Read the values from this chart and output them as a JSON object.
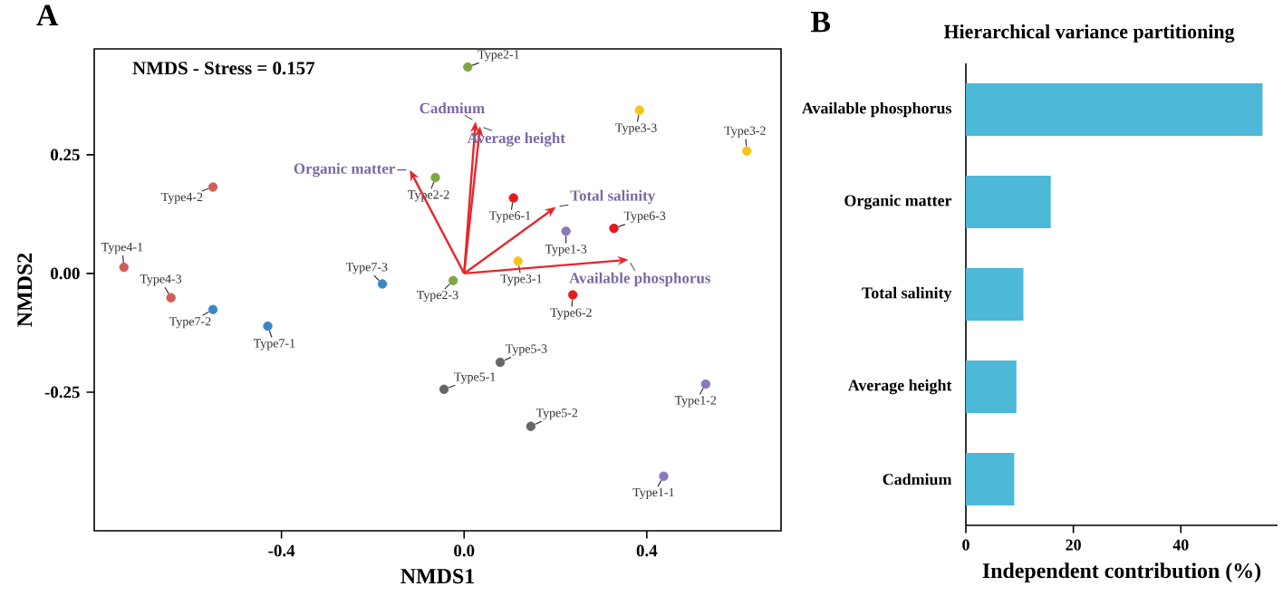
{
  "chart_data": [
    {
      "type": "scatter",
      "annotations": [
        "A",
        "NMDS - Stress = 0.157",
        "Cadmium",
        "Average height",
        "Organic matter",
        "Total salinity",
        "Available phosphorus"
      ],
      "xlabel": "NMDS1",
      "ylabel": "NMDS2",
      "xlim": [
        -0.81,
        0.694
      ],
      "ylim": [
        -0.542,
        0.473
      ],
      "xticks": [
        -0.4,
        {
          "value": 0,
          "label": "0.0"
        },
        0.4
      ],
      "yticks": [
        -0.25,
        {
          "value": 0,
          "label": "0.00"
        },
        0.25
      ],
      "marker": "circle",
      "series": [
        {
          "name": "Type2-1",
          "color": "#7fa645",
          "x": [
            0.008
          ],
          "values": [
            0.435
          ]
        },
        {
          "name": "Type3-3",
          "color": "#f5c518",
          "x": [
            0.384
          ],
          "values": [
            0.344
          ]
        },
        {
          "name": "Type3-2",
          "color": "#f5c518",
          "x": [
            0.619
          ],
          "values": [
            0.258
          ]
        },
        {
          "name": "Type4-2",
          "color": "#cf5d5a",
          "x": [
            -0.55
          ],
          "values": [
            0.182
          ]
        },
        {
          "name": "Type2-2",
          "color": "#7fa645",
          "x": [
            -0.063
          ],
          "values": [
            0.202
          ]
        },
        {
          "name": "Type6-1",
          "color": "#e8191c",
          "x": [
            0.108
          ],
          "values": [
            0.159
          ]
        },
        {
          "name": "Type1-3",
          "color": "#8a78b8",
          "x": [
            0.223
          ],
          "values": [
            0.089
          ]
        },
        {
          "name": "Type6-3",
          "color": "#e8191c",
          "x": [
            0.328
          ],
          "values": [
            0.095
          ]
        },
        {
          "name": "Type4-1",
          "color": "#cf5d5a",
          "x": [
            -0.745
          ],
          "values": [
            0.013
          ]
        },
        {
          "name": "Type3-1",
          "color": "#f5c518",
          "x": [
            0.118
          ],
          "values": [
            0.026
          ]
        },
        {
          "name": "Type4-3",
          "color": "#cf5d5a",
          "x": [
            -0.642
          ],
          "values": [
            -0.051
          ]
        },
        {
          "name": "Type7-3",
          "color": "#3a87c8",
          "x": [
            -0.179
          ],
          "values": [
            -0.022
          ]
        },
        {
          "name": "Type2-3",
          "color": "#7fa645",
          "x": [
            -0.024
          ],
          "values": [
            -0.015
          ]
        },
        {
          "name": "Type6-2",
          "color": "#e8191c",
          "x": [
            0.238
          ],
          "values": [
            -0.045
          ]
        },
        {
          "name": "Type7-2",
          "color": "#3a87c8",
          "x": [
            -0.55
          ],
          "values": [
            -0.076
          ]
        },
        {
          "name": "Type7-1",
          "color": "#3a87c8",
          "x": [
            -0.43
          ],
          "values": [
            -0.111
          ]
        },
        {
          "name": "Type5-3",
          "color": "#666666",
          "x": [
            0.079
          ],
          "values": [
            -0.187
          ]
        },
        {
          "name": "Type5-1",
          "color": "#666666",
          "x": [
            -0.044
          ],
          "values": [
            -0.244
          ]
        },
        {
          "name": "Type5-2",
          "color": "#666666",
          "x": [
            0.146
          ],
          "values": [
            -0.322
          ]
        },
        {
          "name": "Type1-2",
          "color": "#8a78b8",
          "x": [
            0.529
          ],
          "values": [
            -0.233
          ]
        },
        {
          "name": "Type1-1",
          "color": "#8a78b8",
          "x": [
            0.437
          ],
          "values": [
            -0.427
          ]
        }
      ]
    },
    {
      "type": "bar",
      "orientation": "horizontal",
      "title": "Hierarchical variance partitioning",
      "annotations": [
        "B"
      ],
      "xlabel": "Independent contribution (%)",
      "categories": [
        "Available phosphorus",
        "Organic matter",
        "Total salinity",
        "Average height",
        "Cadmium"
      ],
      "values": [
        55.2,
        15.8,
        10.7,
        9.4,
        9.0
      ],
      "color": "#4db8d8",
      "xlim": [
        0,
        58
      ],
      "xticks": [
        0,
        20,
        40
      ]
    }
  ]
}
